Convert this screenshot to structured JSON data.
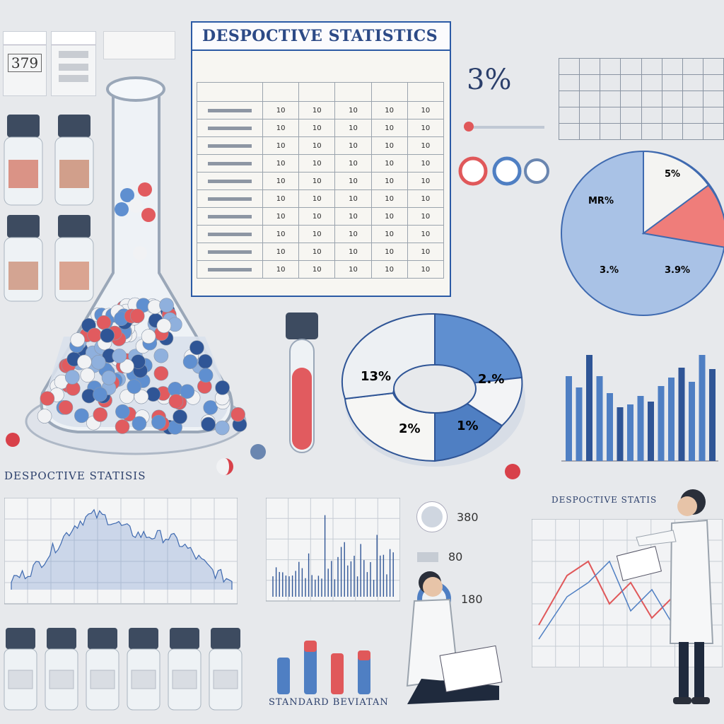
{
  "top_left_card": {
    "value": "379"
  },
  "table": {
    "title": "DESPOCTIVE STATISTICS",
    "rows": [
      [
        "10",
        "10",
        "10",
        "10",
        "10"
      ],
      [
        "10",
        "10",
        "10",
        "10",
        "10"
      ],
      [
        "10",
        "10",
        "10",
        "10",
        "10"
      ],
      [
        "10",
        "10",
        "10",
        "10",
        "10"
      ],
      [
        "10",
        "10",
        "10",
        "10",
        "10"
      ],
      [
        "10",
        "10",
        "10",
        "10",
        "10"
      ],
      [
        "10",
        "10",
        "10",
        "10",
        "10"
      ],
      [
        "10",
        "10",
        "10",
        "10",
        "10"
      ],
      [
        "10",
        "10",
        "10",
        "10",
        "10"
      ],
      [
        "10",
        "10",
        "10",
        "10",
        "10"
      ]
    ]
  },
  "big_percent": "3%",
  "pie_labels": [
    "5%",
    "MR%",
    "3.%",
    "3.9%"
  ],
  "donut_labels": [
    "13%",
    "2.%",
    "2%",
    "1%"
  ],
  "section_heading": "DESPOCTIVE STATISIS",
  "right_heading": "DESPOCTIVE STATIS",
  "bottom_caption": "STANDARD BEVIATAN",
  "side_values": [
    "380",
    "80",
    "180"
  ],
  "colors": {
    "navy": "#2b4f8f",
    "blue": "#4f7fc3",
    "red": "#e0585a",
    "pale": "#dfe6f1"
  }
}
